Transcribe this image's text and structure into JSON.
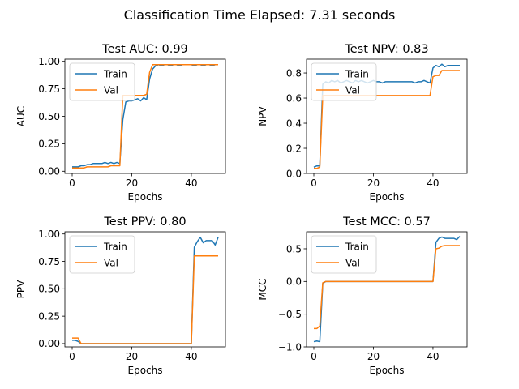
{
  "suptitle": "Classification Time Elapsed: 7.31 seconds",
  "colors": {
    "train": "#1f77b4",
    "val": "#ff7f0e"
  },
  "chart_data": [
    {
      "type": "line",
      "title": "Test AUC: 0.99",
      "xlabel": "Epochs",
      "ylabel": "AUC",
      "xlim": [
        -2.45,
        51.45
      ],
      "ylim": [
        -0.02,
        1.02
      ],
      "xticks": [
        0,
        20,
        40
      ],
      "xtick_labels": [
        "0",
        "20",
        "40"
      ],
      "yticks": [
        0.0,
        0.25,
        0.5,
        0.75,
        1.0
      ],
      "ytick_labels": [
        "0.00",
        "0.25",
        "0.50",
        "0.75",
        "1.00"
      ],
      "legend": "upper-left",
      "x": [
        0,
        1,
        2,
        3,
        4,
        5,
        6,
        7,
        8,
        9,
        10,
        11,
        12,
        13,
        14,
        15,
        16,
        17,
        18,
        19,
        20,
        21,
        22,
        23,
        24,
        25,
        26,
        27,
        28,
        29,
        30,
        31,
        32,
        33,
        34,
        35,
        36,
        37,
        38,
        39,
        40,
        41,
        42,
        43,
        44,
        45,
        46,
        47,
        48,
        49
      ],
      "series": [
        {
          "name": "Train",
          "values": [
            0.04,
            0.04,
            0.04,
            0.05,
            0.05,
            0.06,
            0.06,
            0.07,
            0.07,
            0.07,
            0.07,
            0.08,
            0.07,
            0.08,
            0.07,
            0.08,
            0.07,
            0.47,
            0.63,
            0.64,
            0.64,
            0.65,
            0.66,
            0.64,
            0.67,
            0.65,
            0.84,
            0.93,
            0.96,
            0.97,
            0.96,
            0.97,
            0.97,
            0.96,
            0.97,
            0.97,
            0.96,
            0.97,
            0.97,
            0.97,
            0.97,
            0.96,
            0.97,
            0.97,
            0.96,
            0.97,
            0.97,
            0.96,
            0.97,
            0.97
          ]
        },
        {
          "name": "Val",
          "values": [
            0.03,
            0.03,
            0.03,
            0.03,
            0.03,
            0.04,
            0.04,
            0.04,
            0.04,
            0.04,
            0.04,
            0.04,
            0.04,
            0.05,
            0.05,
            0.05,
            0.05,
            0.69,
            0.69,
            0.69,
            0.69,
            0.69,
            0.69,
            0.69,
            0.69,
            0.7,
            0.9,
            0.97,
            0.97,
            0.97,
            0.97,
            0.97,
            0.97,
            0.97,
            0.97,
            0.97,
            0.97,
            0.97,
            0.97,
            0.97,
            0.97,
            0.97,
            0.97,
            0.97,
            0.97,
            0.97,
            0.97,
            0.97,
            0.97,
            0.97
          ]
        }
      ]
    },
    {
      "type": "line",
      "title": "Test NPV: 0.83",
      "xlabel": "Epochs",
      "ylabel": "NPV",
      "xlim": [
        -2.45,
        51.45
      ],
      "ylim": [
        0.0,
        0.91
      ],
      "xticks": [
        0,
        20,
        40
      ],
      "xtick_labels": [
        "0",
        "20",
        "40"
      ],
      "yticks": [
        0.0,
        0.2,
        0.4,
        0.6,
        0.8
      ],
      "ytick_labels": [
        "0.0",
        "0.2",
        "0.4",
        "0.6",
        "0.8"
      ],
      "legend": "upper-left",
      "x": [
        0,
        1,
        2,
        3,
        4,
        5,
        6,
        7,
        8,
        9,
        10,
        11,
        12,
        13,
        14,
        15,
        16,
        17,
        18,
        19,
        20,
        21,
        22,
        23,
        24,
        25,
        26,
        27,
        28,
        29,
        30,
        31,
        32,
        33,
        34,
        35,
        36,
        37,
        38,
        39,
        40,
        41,
        42,
        43,
        44,
        45,
        46,
        47,
        48,
        49
      ],
      "series": [
        {
          "name": "Train",
          "values": [
            0.05,
            0.06,
            0.06,
            0.71,
            0.73,
            0.72,
            0.74,
            0.73,
            0.74,
            0.72,
            0.73,
            0.74,
            0.73,
            0.72,
            0.74,
            0.73,
            0.74,
            0.73,
            0.72,
            0.73,
            0.74,
            0.73,
            0.73,
            0.72,
            0.73,
            0.73,
            0.73,
            0.73,
            0.73,
            0.73,
            0.73,
            0.73,
            0.73,
            0.73,
            0.72,
            0.73,
            0.73,
            0.74,
            0.73,
            0.72,
            0.84,
            0.86,
            0.85,
            0.87,
            0.85,
            0.86,
            0.86,
            0.86,
            0.86,
            0.86
          ]
        },
        {
          "name": "Val",
          "values": [
            0.04,
            0.04,
            0.05,
            0.62,
            0.62,
            0.62,
            0.62,
            0.62,
            0.62,
            0.62,
            0.62,
            0.62,
            0.62,
            0.62,
            0.62,
            0.62,
            0.62,
            0.62,
            0.62,
            0.62,
            0.62,
            0.62,
            0.62,
            0.62,
            0.62,
            0.62,
            0.62,
            0.62,
            0.62,
            0.62,
            0.62,
            0.62,
            0.62,
            0.62,
            0.62,
            0.62,
            0.62,
            0.62,
            0.62,
            0.62,
            0.77,
            0.78,
            0.78,
            0.82,
            0.82,
            0.82,
            0.82,
            0.82,
            0.82,
            0.82
          ]
        }
      ]
    },
    {
      "type": "line",
      "title": "Test PPV: 0.80",
      "xlabel": "Epochs",
      "ylabel": "PPV",
      "xlim": [
        -2.45,
        51.45
      ],
      "ylim": [
        -0.03,
        1.02
      ],
      "xticks": [
        0,
        20,
        40
      ],
      "xtick_labels": [
        "0",
        "20",
        "40"
      ],
      "yticks": [
        0.0,
        0.25,
        0.5,
        0.75,
        1.0
      ],
      "ytick_labels": [
        "0.00",
        "0.25",
        "0.50",
        "0.75",
        "1.00"
      ],
      "legend": "upper-left",
      "x": [
        0,
        1,
        2,
        3,
        4,
        5,
        6,
        7,
        8,
        9,
        10,
        11,
        12,
        13,
        14,
        15,
        16,
        17,
        18,
        19,
        20,
        21,
        22,
        23,
        24,
        25,
        26,
        27,
        28,
        29,
        30,
        31,
        32,
        33,
        34,
        35,
        36,
        37,
        38,
        39,
        40,
        41,
        42,
        43,
        44,
        45,
        46,
        47,
        48,
        49
      ],
      "series": [
        {
          "name": "Train",
          "values": [
            0.03,
            0.03,
            0.02,
            0.0,
            0.0,
            0.0,
            0.0,
            0.0,
            0.0,
            0.0,
            0.0,
            0.0,
            0.0,
            0.0,
            0.0,
            0.0,
            0.0,
            0.0,
            0.0,
            0.0,
            0.0,
            0.0,
            0.0,
            0.0,
            0.0,
            0.0,
            0.0,
            0.0,
            0.0,
            0.0,
            0.0,
            0.0,
            0.0,
            0.0,
            0.0,
            0.0,
            0.0,
            0.0,
            0.0,
            0.0,
            0.0,
            0.88,
            0.93,
            0.97,
            0.92,
            0.94,
            0.94,
            0.94,
            0.9,
            0.97
          ]
        },
        {
          "name": "Val",
          "values": [
            0.05,
            0.05,
            0.05,
            0.0,
            0.0,
            0.0,
            0.0,
            0.0,
            0.0,
            0.0,
            0.0,
            0.0,
            0.0,
            0.0,
            0.0,
            0.0,
            0.0,
            0.0,
            0.0,
            0.0,
            0.0,
            0.0,
            0.0,
            0.0,
            0.0,
            0.0,
            0.0,
            0.0,
            0.0,
            0.0,
            0.0,
            0.0,
            0.0,
            0.0,
            0.0,
            0.0,
            0.0,
            0.0,
            0.0,
            0.0,
            0.0,
            0.8,
            0.8,
            0.8,
            0.8,
            0.8,
            0.8,
            0.8,
            0.8,
            0.8
          ]
        }
      ]
    },
    {
      "type": "line",
      "title": "Test MCC: 0.57",
      "xlabel": "Epochs",
      "ylabel": "MCC",
      "xlim": [
        -2.45,
        51.45
      ],
      "ylim": [
        -1.0,
        0.76
      ],
      "xticks": [
        0,
        20,
        40
      ],
      "xtick_labels": [
        "0",
        "20",
        "40"
      ],
      "yticks": [
        -1.0,
        -0.5,
        0.0,
        0.5
      ],
      "ytick_labels": [
        "−1.0",
        "−0.5",
        "0.0",
        "0.5"
      ],
      "legend": "upper-left",
      "x": [
        0,
        1,
        2,
        3,
        4,
        5,
        6,
        7,
        8,
        9,
        10,
        11,
        12,
        13,
        14,
        15,
        16,
        17,
        18,
        19,
        20,
        21,
        22,
        23,
        24,
        25,
        26,
        27,
        28,
        29,
        30,
        31,
        32,
        33,
        34,
        35,
        36,
        37,
        38,
        39,
        40,
        41,
        42,
        43,
        44,
        45,
        46,
        47,
        48,
        49
      ],
      "series": [
        {
          "name": "Train",
          "values": [
            -0.92,
            -0.91,
            -0.92,
            -0.03,
            0.0,
            0.0,
            0.0,
            0.0,
            0.0,
            0.0,
            0.0,
            0.0,
            0.0,
            0.0,
            0.0,
            0.0,
            0.0,
            0.0,
            0.0,
            0.0,
            0.0,
            0.0,
            0.0,
            0.0,
            0.0,
            0.0,
            0.0,
            0.0,
            0.0,
            0.0,
            0.0,
            0.0,
            0.0,
            0.0,
            0.0,
            0.0,
            0.0,
            0.0,
            0.0,
            0.0,
            0.0,
            0.6,
            0.66,
            0.68,
            0.66,
            0.66,
            0.66,
            0.66,
            0.64,
            0.69
          ]
        },
        {
          "name": "Val",
          "values": [
            -0.72,
            -0.72,
            -0.68,
            -0.02,
            0.0,
            0.0,
            0.0,
            0.0,
            0.0,
            0.0,
            0.0,
            0.0,
            0.0,
            0.0,
            0.0,
            0.0,
            0.0,
            0.0,
            0.0,
            0.0,
            0.0,
            0.0,
            0.0,
            0.0,
            0.0,
            0.0,
            0.0,
            0.0,
            0.0,
            0.0,
            0.0,
            0.0,
            0.0,
            0.0,
            0.0,
            0.0,
            0.0,
            0.0,
            0.0,
            0.0,
            0.0,
            0.5,
            0.51,
            0.54,
            0.55,
            0.55,
            0.55,
            0.55,
            0.55,
            0.55
          ]
        }
      ]
    }
  ]
}
